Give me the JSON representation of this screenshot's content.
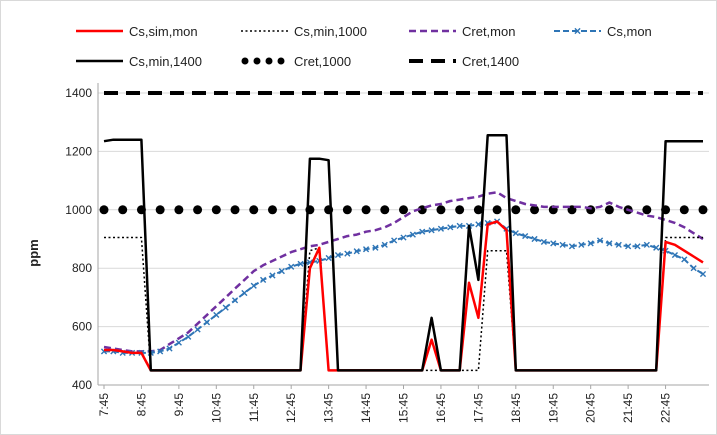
{
  "chart_data": {
    "type": "line",
    "title": "",
    "xlabel": "",
    "ylabel": "ppm",
    "ylim": [
      400,
      1400
    ],
    "yticks": [
      400,
      600,
      800,
      1000,
      1200,
      1400
    ],
    "grid": "horizontal",
    "legend_position": "top",
    "x_tick_labels": [
      "7:45",
      "8:45",
      "9:45",
      "10:45",
      "11:45",
      "12:45",
      "13:45",
      "14:45",
      "15:45",
      "16:45",
      "17:45",
      "18:45",
      "19:45",
      "20:45",
      "21:45",
      "22:45"
    ],
    "x_step_minutes": 15,
    "x_start": "7:45",
    "series": [
      {
        "name": "Cs,sim,mon",
        "color": "#ff0000",
        "style": "solid",
        "values": [
          520,
          520,
          515,
          510,
          510,
          450,
          450,
          450,
          450,
          450,
          450,
          450,
          450,
          450,
          450,
          450,
          450,
          450,
          450,
          450,
          450,
          450,
          800,
          870,
          450,
          450,
          450,
          450,
          450,
          450,
          450,
          450,
          450,
          450,
          450,
          555,
          450,
          450,
          450,
          750,
          630,
          950,
          960,
          930,
          450,
          450,
          450,
          450,
          450,
          450,
          450,
          450,
          450,
          450,
          450,
          450,
          450,
          450,
          450,
          450,
          890,
          880,
          860,
          840,
          820
        ]
      },
      {
        "name": "Cs,min,1000",
        "color": "#000000",
        "style": "dotted",
        "values": [
          905,
          905,
          905,
          905,
          905,
          450,
          450,
          450,
          450,
          450,
          450,
          450,
          450,
          450,
          450,
          450,
          450,
          450,
          450,
          450,
          450,
          450,
          860,
          870,
          450,
          450,
          450,
          450,
          450,
          450,
          450,
          450,
          450,
          450,
          450,
          450,
          450,
          450,
          450,
          450,
          450,
          860,
          860,
          860,
          450,
          450,
          450,
          450,
          450,
          450,
          450,
          450,
          450,
          450,
          450,
          450,
          450,
          450,
          450,
          450,
          905,
          905,
          905,
          905,
          905
        ]
      },
      {
        "name": "Cret,mon",
        "color": "#7030a0",
        "style": "dashed",
        "values": [
          530,
          525,
          520,
          515,
          515,
          515,
          520,
          540,
          560,
          580,
          610,
          640,
          670,
          700,
          730,
          760,
          790,
          810,
          825,
          840,
          855,
          865,
          875,
          880,
          890,
          900,
          910,
          915,
          925,
          930,
          940,
          955,
          975,
          995,
          1005,
          1015,
          1020,
          1030,
          1035,
          1040,
          1045,
          1055,
          1060,
          1040,
          1030,
          1020,
          1015,
          1010,
          1010,
          1010,
          1010,
          1010,
          1005,
          1010,
          1025,
          1010,
          1000,
          990,
          980,
          975,
          965,
          955,
          940,
          920,
          900
        ]
      },
      {
        "name": "Cs,mon",
        "color": "#2e75b6",
        "style": "dash-marker",
        "values": [
          515,
          515,
          510,
          510,
          510,
          510,
          515,
          525,
          545,
          565,
          590,
          615,
          640,
          665,
          690,
          715,
          740,
          760,
          775,
          790,
          805,
          815,
          820,
          825,
          835,
          845,
          850,
          858,
          865,
          870,
          880,
          895,
          905,
          915,
          925,
          930,
          935,
          940,
          945,
          945,
          950,
          955,
          960,
          935,
          920,
          910,
          900,
          890,
          885,
          880,
          875,
          880,
          885,
          895,
          885,
          880,
          875,
          875,
          880,
          870,
          860,
          845,
          830,
          800,
          780
        ]
      },
      {
        "name": "Cs,min,1400",
        "color": "#000000",
        "style": "solid-thick",
        "values": [
          1235,
          1240,
          1240,
          1240,
          1240,
          450,
          450,
          450,
          450,
          450,
          450,
          450,
          450,
          450,
          450,
          450,
          450,
          450,
          450,
          450,
          450,
          450,
          1175,
          1175,
          1170,
          450,
          450,
          450,
          450,
          450,
          450,
          450,
          450,
          450,
          450,
          630,
          450,
          450,
          450,
          945,
          760,
          1255,
          1255,
          1255,
          450,
          450,
          450,
          450,
          450,
          450,
          450,
          450,
          450,
          450,
          450,
          450,
          450,
          450,
          450,
          450,
          1235,
          1235,
          1235,
          1235,
          1235
        ]
      },
      {
        "name": "Cret,1000",
        "color": "#000000",
        "style": "big-dots",
        "values": [
          1000,
          1000,
          1000,
          1000,
          1000,
          1000,
          1000,
          1000,
          1000,
          1000,
          1000,
          1000,
          1000,
          1000,
          1000,
          1000,
          1000,
          1000,
          1000,
          1000,
          1000,
          1000,
          1000,
          1000,
          1000,
          1000,
          1000,
          1000,
          1000,
          1000,
          1000,
          1000,
          1000,
          1000,
          1000,
          1000,
          1000,
          1000,
          1000,
          1000,
          1000,
          1000,
          1000,
          1000,
          1000,
          1000,
          1000,
          1000,
          1000,
          1000,
          1000,
          1000,
          1000,
          1000,
          1000,
          1000,
          1000,
          1000,
          1000,
          1000,
          1000,
          1000,
          1000,
          1000,
          1000
        ]
      },
      {
        "name": "Cret,1400",
        "color": "#000000",
        "style": "long-dash",
        "values": [
          1400,
          1400,
          1400,
          1400,
          1400,
          1400,
          1400,
          1400,
          1400,
          1400,
          1400,
          1400,
          1400,
          1400,
          1400,
          1400,
          1400,
          1400,
          1400,
          1400,
          1400,
          1400,
          1400,
          1400,
          1400,
          1400,
          1400,
          1400,
          1400,
          1400,
          1400,
          1400,
          1400,
          1400,
          1400,
          1400,
          1400,
          1400,
          1400,
          1400,
          1400,
          1400,
          1400,
          1400,
          1400,
          1400,
          1400,
          1400,
          1400,
          1400,
          1400,
          1400,
          1400,
          1400,
          1400,
          1400,
          1400,
          1400,
          1400,
          1400,
          1400,
          1400,
          1400,
          1400,
          1400
        ]
      }
    ]
  }
}
